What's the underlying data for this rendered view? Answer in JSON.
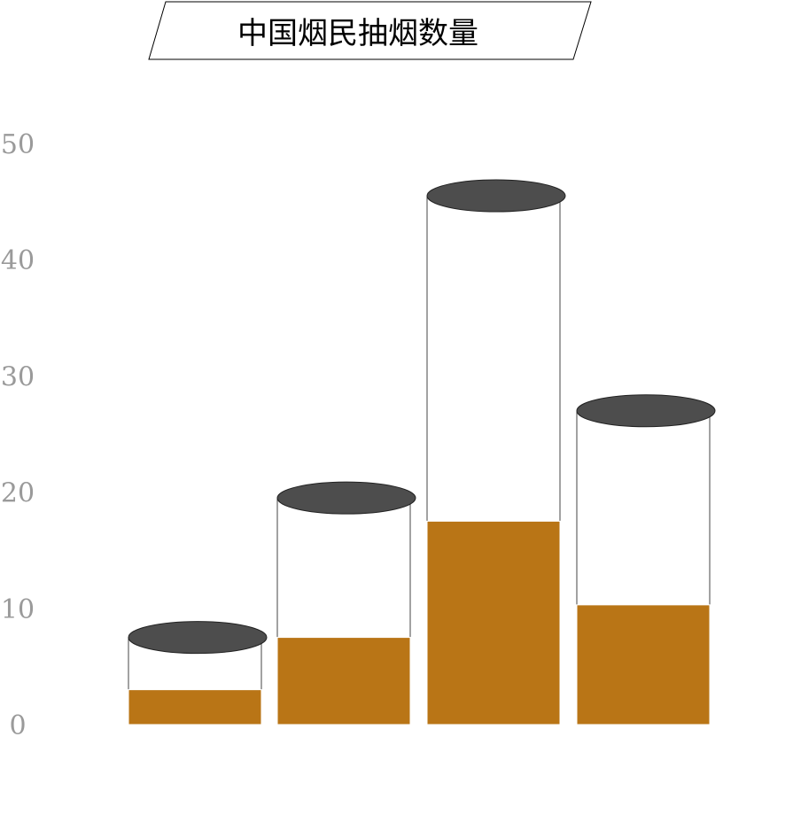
{
  "colors": {
    "fill": "#b97516",
    "cap": "#4d4d4d",
    "outline": "#444444",
    "tick_text": "#9a9a9a"
  },
  "chart_data": {
    "type": "bar",
    "title": "中国烟民抽烟数量",
    "categories": [
      "",
      "",
      "",
      ""
    ],
    "series": [
      {
        "values": [
          7.5,
          19.5,
          45.5,
          27.0
        ]
      },
      {
        "values": [
          3.0,
          7.5,
          17.5,
          10.3
        ]
      }
    ],
    "ylim": [
      0,
      50
    ],
    "yticks": [
      "0",
      "10",
      "20",
      "30",
      "40",
      "50"
    ],
    "grid": false,
    "legend": "none",
    "xlabel": "",
    "ylabel": ""
  }
}
